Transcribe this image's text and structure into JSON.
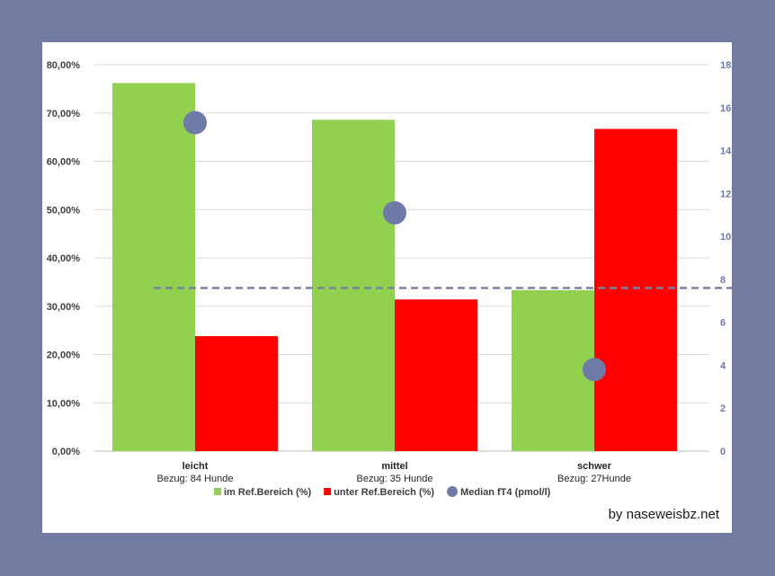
{
  "chart_data": {
    "type": "bar",
    "categories": [
      "leicht",
      "mittel",
      "schwer"
    ],
    "category_sublabels": [
      "Bezug: 84 Hunde",
      "Bezug: 35 Hunde",
      "Bezug: 27Hunde"
    ],
    "series": [
      {
        "name": "im Ref.Bereich (%)",
        "axis": "left",
        "kind": "bar",
        "values": [
          76.2,
          68.6,
          33.3
        ],
        "color": "#92d050"
      },
      {
        "name": "unter Ref.Bereich (%)",
        "axis": "left",
        "kind": "bar",
        "values": [
          23.8,
          31.4,
          66.7
        ],
        "color": "#ff0000"
      },
      {
        "name": "Median fT4 (pmol/l)",
        "axis": "right",
        "kind": "marker",
        "values": [
          15.3,
          11.1,
          3.8
        ],
        "color": "#6e7ba6"
      }
    ],
    "reference_line": {
      "axis": "right",
      "value": 7.6,
      "color": "#7a80a0",
      "style": "dashed"
    },
    "left_axis": {
      "ylim": [
        0,
        80
      ],
      "ticks": [
        "0,00%",
        "10,00%",
        "20,00%",
        "30,00%",
        "40,00%",
        "50,00%",
        "60,00%",
        "70,00%",
        "80,00%"
      ]
    },
    "right_axis": {
      "ylim": [
        0,
        18
      ],
      "ticks": [
        "0",
        "2",
        "4",
        "6",
        "8",
        "10",
        "12",
        "14",
        "16",
        "18"
      ]
    },
    "legend": {
      "placement": "bottom"
    },
    "grid": true,
    "title": ""
  },
  "credit": "by naseweisbz.net"
}
